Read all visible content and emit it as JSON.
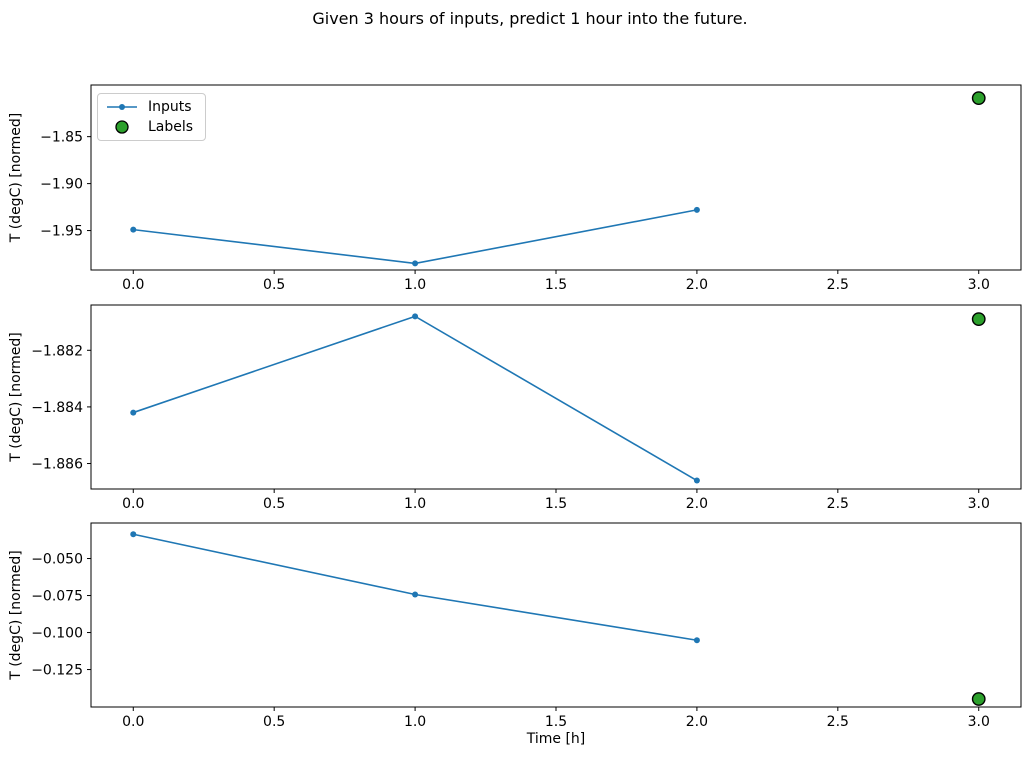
{
  "figure": {
    "title": "Given 3 hours of inputs, predict 1 hour into the future.",
    "xlabel": "Time [h]",
    "background": "#ffffff"
  },
  "colors": {
    "inputs": "#1f77b4",
    "labels_fill": "#2ca02c",
    "labels_edge": "#000000",
    "axis": "#000000",
    "text": "#000000"
  },
  "legend": {
    "position": "upper-left-subplot-1",
    "items": [
      {
        "label": "Inputs",
        "type": "line-with-marker",
        "color": "#1f77b4"
      },
      {
        "label": "Labels",
        "type": "scatter",
        "color": "#2ca02c"
      }
    ]
  },
  "chart_data": [
    {
      "type": "line",
      "ylabel": "T (degC) [normed]",
      "xlim": [
        -0.15,
        3.15
      ],
      "ylim": [
        -1.992,
        -1.795
      ],
      "grid": false,
      "xticks": {
        "values": [
          0,
          0.5,
          1,
          1.5,
          2,
          2.5,
          3
        ],
        "labels": [
          "0.0",
          "0.5",
          "1.0",
          "1.5",
          "2.0",
          "2.5",
          "3.0"
        ]
      },
      "yticks": {
        "values": [
          -1.85,
          -1.9,
          -1.95
        ],
        "labels": [
          "−1.85",
          "−1.90",
          "−1.95"
        ]
      },
      "series": [
        {
          "name": "Inputs",
          "type": "line",
          "x": [
            0,
            1,
            2
          ],
          "y": [
            -1.949,
            -1.985,
            -1.928
          ]
        },
        {
          "name": "Labels",
          "type": "scatter",
          "x": [
            3
          ],
          "y": [
            -1.809
          ]
        }
      ]
    },
    {
      "type": "line",
      "ylabel": "T (degC) [normed]",
      "xlim": [
        -0.15,
        3.15
      ],
      "ylim": [
        -1.8869,
        -1.8804
      ],
      "grid": false,
      "xticks": {
        "values": [
          0,
          0.5,
          1,
          1.5,
          2,
          2.5,
          3
        ],
        "labels": [
          "0.0",
          "0.5",
          "1.0",
          "1.5",
          "2.0",
          "2.5",
          "3.0"
        ]
      },
      "yticks": {
        "values": [
          -1.882,
          -1.884,
          -1.886
        ],
        "labels": [
          "−1.882",
          "−1.884",
          "−1.886"
        ]
      },
      "series": [
        {
          "name": "Inputs",
          "type": "line",
          "x": [
            0,
            1,
            2
          ],
          "y": [
            -1.8842,
            -1.8808,
            -1.8866
          ]
        },
        {
          "name": "Labels",
          "type": "scatter",
          "x": [
            3
          ],
          "y": [
            -1.8809
          ]
        }
      ]
    },
    {
      "type": "line",
      "ylabel": "T (degC) [normed]",
      "xlim": [
        -0.15,
        3.15
      ],
      "ylim": [
        -0.1503,
        -0.026
      ],
      "grid": false,
      "xticks": {
        "values": [
          0,
          0.5,
          1,
          1.5,
          2,
          2.5,
          3
        ],
        "labels": [
          "0.0",
          "0.5",
          "1.0",
          "1.5",
          "2.0",
          "2.5",
          "3.0"
        ]
      },
      "yticks": {
        "values": [
          -0.05,
          -0.075,
          -0.1,
          -0.125
        ],
        "labels": [
          "−0.050",
          "−0.075",
          "−0.100",
          "−0.125"
        ]
      },
      "series": [
        {
          "name": "Inputs",
          "type": "line",
          "x": [
            0,
            1,
            2
          ],
          "y": [
            -0.0336,
            -0.0743,
            -0.1052
          ]
        },
        {
          "name": "Labels",
          "type": "scatter",
          "x": [
            3
          ],
          "y": [
            -0.1449
          ]
        }
      ]
    }
  ]
}
